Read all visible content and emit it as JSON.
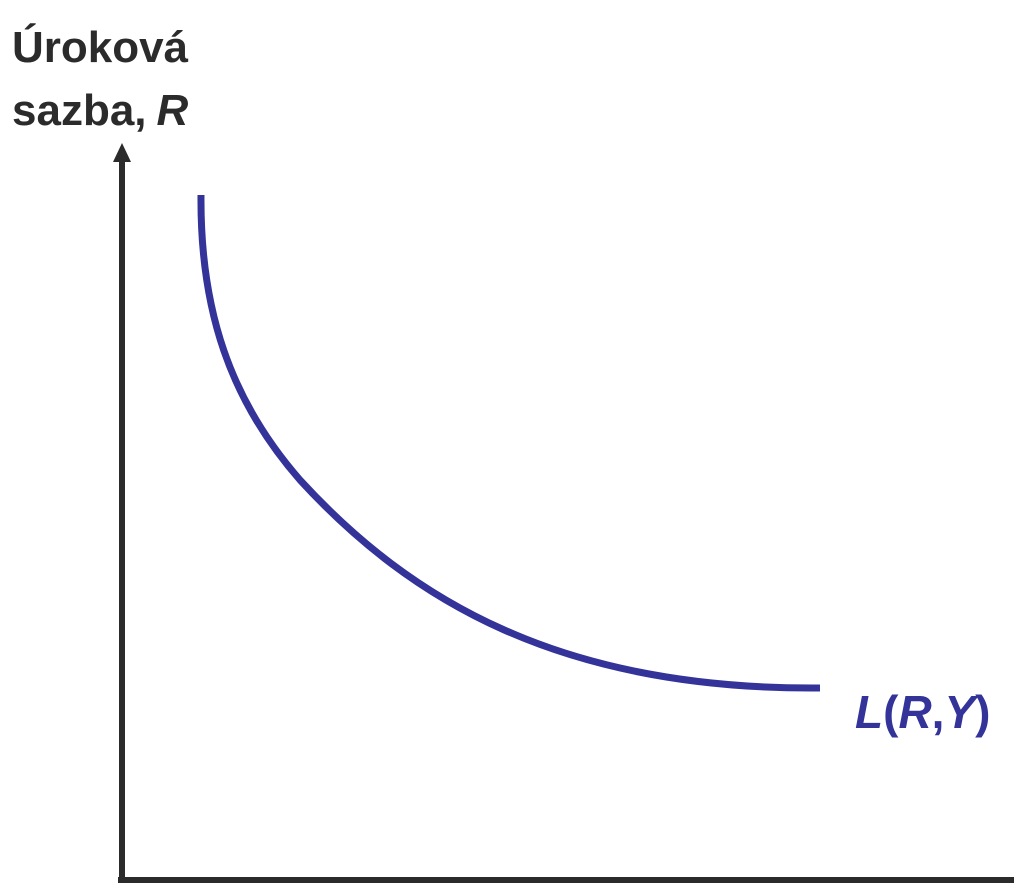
{
  "y_axis_label": {
    "line1": "Úroková",
    "line2": [
      "sazba,",
      "R"
    ]
  },
  "curve_label": [
    "L",
    "(",
    "R",
    ",",
    "Y",
    ")"
  ]
}
